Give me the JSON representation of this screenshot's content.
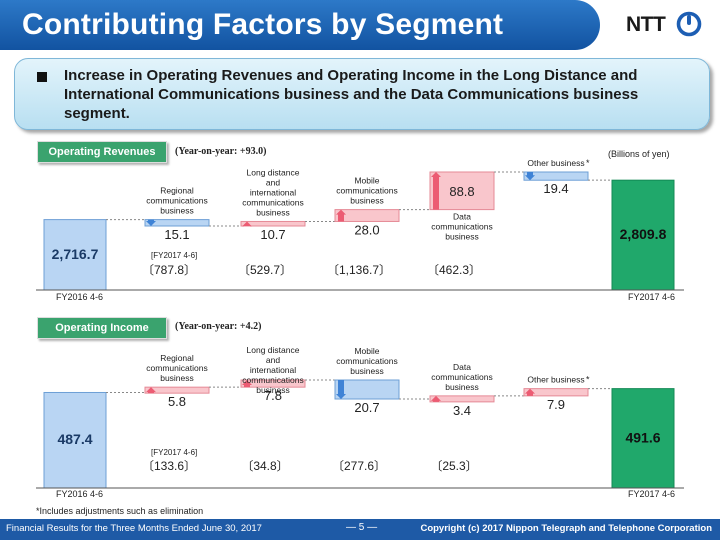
{
  "header": {
    "title": "Contributing Factors by Segment",
    "logo_text": "NTT"
  },
  "highlight": {
    "text": "Increase in Operating Revenues and Operating Income in the Long Distance and International Communications business and the Data Communications business segment."
  },
  "colors": {
    "banner": "#1a5fae",
    "increase_bar": "#f9c6cc",
    "decrease_bar": "#b9d5f3",
    "total_bar": "#20a86b",
    "label_green": "#3aa36e"
  },
  "unit_label": "(Billions of yen)",
  "chart_data": [
    {
      "type": "bar",
      "subtype": "waterfall",
      "section_label": "Operating Revenues",
      "yoy_label": "(Year-on-year:  +93.0)",
      "start": {
        "label": "FY2016 4-6",
        "value": 2716.7,
        "value_label": "2,716.7"
      },
      "end": {
        "label": "FY2017 4-6",
        "value": 2809.8,
        "value_label": "2,809.8"
      },
      "fy2017_label": "[FY2017 4-6]",
      "categories": [
        "Regional communications business",
        "Long distance and international communications business",
        "Mobile communications business",
        "Data communications business",
        "Other business *"
      ],
      "changes": [
        -15.1,
        10.7,
        28.0,
        88.8,
        -19.4
      ],
      "change_labels": [
        "15.1",
        "10.7",
        "28.0",
        "88.8",
        "19.4"
      ],
      "fy2017_values": [
        "〔787.8〕",
        "〔529.7〕",
        "〔1,136.7〕",
        "〔462.3〕"
      ]
    },
    {
      "type": "bar",
      "subtype": "waterfall",
      "section_label": "Operating Income",
      "yoy_label": "(Year-on-year:  +4.2)",
      "start": {
        "label": "FY2016 4-6",
        "value": 487.4,
        "value_label": "487.4"
      },
      "end": {
        "label": "FY2017 4-6",
        "value": 491.6,
        "value_label": "491.6"
      },
      "fy2017_label": "[FY2017 4-6]",
      "categories": [
        "Regional communications business",
        "Long distance and international communications business",
        "Mobile communications business",
        "Data communications business",
        "Other business *"
      ],
      "changes": [
        5.8,
        7.8,
        -20.7,
        3.4,
        7.9
      ],
      "change_labels": [
        "5.8",
        "7.8",
        "20.7",
        "3.4",
        "7.9"
      ],
      "fy2017_values": [
        "〔133.6〕",
        "〔34.8〕",
        "〔277.6〕",
        "〔25.3〕"
      ]
    }
  ],
  "footnote": "*Includes adjustments such as elimination",
  "footer": {
    "left": "Financial Results for the Three Months Ended June 30, 2017",
    "page": "― 5 ―",
    "right": "Copyright (c) 2017 Nippon Telegraph and Telephone Corporation"
  }
}
